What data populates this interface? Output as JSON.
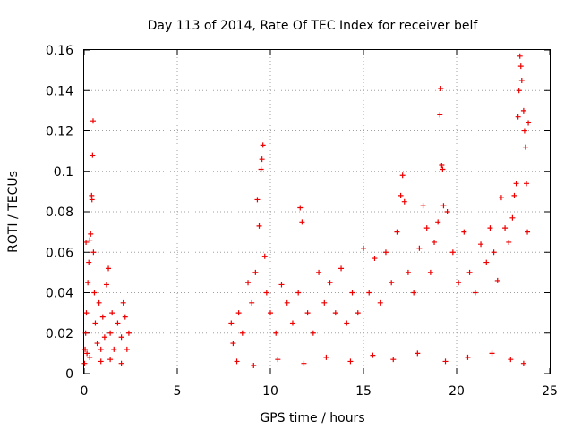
{
  "chart_data": {
    "type": "scatter",
    "title": "Day 113 of 2014, Rate Of TEC Index for receiver belf",
    "xlabel": "GPS time / hours",
    "ylabel": "ROTI / TECUs",
    "xlim": [
      0,
      25
    ],
    "ylim": [
      0,
      0.16
    ],
    "x_ticks": [
      "0",
      "5",
      "10",
      "15",
      "20",
      "25"
    ],
    "y_ticks": [
      "0",
      "0.02",
      "0.04",
      "0.06",
      "0.08",
      "0.1",
      "0.12",
      "0.14",
      "0.16"
    ],
    "grid": true,
    "legend": "none",
    "marker": "+",
    "color": "#ee0000",
    "series": [
      {
        "points": [
          [
            0.02,
            0.005
          ],
          [
            0.05,
            0.012
          ],
          [
            0.08,
            0.02
          ],
          [
            0.1,
            0.065
          ],
          [
            0.12,
            0.03
          ],
          [
            0.15,
            0.01
          ],
          [
            0.2,
            0.045
          ],
          [
            0.25,
            0.055
          ],
          [
            0.3,
            0.066
          ],
          [
            0.35,
            0.069
          ],
          [
            0.4,
            0.088
          ],
          [
            0.42,
            0.086
          ],
          [
            0.45,
            0.108
          ],
          [
            0.48,
            0.125
          ],
          [
            0.5,
            0.06
          ],
          [
            0.55,
            0.04
          ],
          [
            0.6,
            0.025
          ],
          [
            0.7,
            0.015
          ],
          [
            0.8,
            0.035
          ],
          [
            0.9,
            0.012
          ],
          [
            1.0,
            0.028
          ],
          [
            1.1,
            0.018
          ],
          [
            1.2,
            0.044
          ],
          [
            1.3,
            0.052
          ],
          [
            1.4,
            0.02
          ],
          [
            1.5,
            0.03
          ],
          [
            1.6,
            0.012
          ],
          [
            1.8,
            0.025
          ],
          [
            2.0,
            0.018
          ],
          [
            2.1,
            0.035
          ],
          [
            2.2,
            0.028
          ],
          [
            2.3,
            0.012
          ],
          [
            2.4,
            0.02
          ],
          [
            7.9,
            0.025
          ],
          [
            8.0,
            0.015
          ],
          [
            8.3,
            0.03
          ],
          [
            8.5,
            0.02
          ],
          [
            8.8,
            0.045
          ],
          [
            9.0,
            0.035
          ],
          [
            9.2,
            0.05
          ],
          [
            9.3,
            0.086
          ],
          [
            9.4,
            0.073
          ],
          [
            9.5,
            0.101
          ],
          [
            9.55,
            0.106
          ],
          [
            9.6,
            0.113
          ],
          [
            9.7,
            0.058
          ],
          [
            9.8,
            0.04
          ],
          [
            10.0,
            0.03
          ],
          [
            10.3,
            0.02
          ],
          [
            10.6,
            0.044
          ],
          [
            10.9,
            0.035
          ],
          [
            11.2,
            0.025
          ],
          [
            11.5,
            0.04
          ],
          [
            11.6,
            0.082
          ],
          [
            11.7,
            0.075
          ],
          [
            12.0,
            0.03
          ],
          [
            12.3,
            0.02
          ],
          [
            12.6,
            0.05
          ],
          [
            12.9,
            0.035
          ],
          [
            13.2,
            0.045
          ],
          [
            13.5,
            0.03
          ],
          [
            13.8,
            0.052
          ],
          [
            14.1,
            0.025
          ],
          [
            14.4,
            0.04
          ],
          [
            14.7,
            0.03
          ],
          [
            15.0,
            0.062
          ],
          [
            15.3,
            0.04
          ],
          [
            15.6,
            0.057
          ],
          [
            15.9,
            0.035
          ],
          [
            16.2,
            0.06
          ],
          [
            16.5,
            0.045
          ],
          [
            16.8,
            0.07
          ],
          [
            17.0,
            0.088
          ],
          [
            17.1,
            0.098
          ],
          [
            17.2,
            0.085
          ],
          [
            17.4,
            0.05
          ],
          [
            17.7,
            0.04
          ],
          [
            18.0,
            0.062
          ],
          [
            18.2,
            0.083
          ],
          [
            18.4,
            0.072
          ],
          [
            18.6,
            0.05
          ],
          [
            18.8,
            0.065
          ],
          [
            19.0,
            0.075
          ],
          [
            19.1,
            0.128
          ],
          [
            19.15,
            0.141
          ],
          [
            19.2,
            0.103
          ],
          [
            19.25,
            0.101
          ],
          [
            19.3,
            0.083
          ],
          [
            19.5,
            0.08
          ],
          [
            19.8,
            0.06
          ],
          [
            20.1,
            0.045
          ],
          [
            20.4,
            0.07
          ],
          [
            20.7,
            0.05
          ],
          [
            21.0,
            0.04
          ],
          [
            21.3,
            0.064
          ],
          [
            21.6,
            0.055
          ],
          [
            21.8,
            0.072
          ],
          [
            22.0,
            0.06
          ],
          [
            22.2,
            0.046
          ],
          [
            22.4,
            0.087
          ],
          [
            22.6,
            0.072
          ],
          [
            22.8,
            0.065
          ],
          [
            23.0,
            0.077
          ],
          [
            23.1,
            0.088
          ],
          [
            23.2,
            0.094
          ],
          [
            23.3,
            0.127
          ],
          [
            23.35,
            0.14
          ],
          [
            23.4,
            0.157
          ],
          [
            23.45,
            0.152
          ],
          [
            23.5,
            0.145
          ],
          [
            23.6,
            0.13
          ],
          [
            23.65,
            0.12
          ],
          [
            23.7,
            0.112
          ],
          [
            23.75,
            0.094
          ],
          [
            23.8,
            0.07
          ],
          [
            23.85,
            0.124
          ],
          [
            0.3,
            0.008
          ],
          [
            0.9,
            0.006
          ],
          [
            1.4,
            0.007
          ],
          [
            2.0,
            0.005
          ],
          [
            8.2,
            0.006
          ],
          [
            9.1,
            0.004
          ],
          [
            10.4,
            0.007
          ],
          [
            11.8,
            0.005
          ],
          [
            13.0,
            0.008
          ],
          [
            14.3,
            0.006
          ],
          [
            15.5,
            0.009
          ],
          [
            16.6,
            0.007
          ],
          [
            17.9,
            0.01
          ],
          [
            19.4,
            0.006
          ],
          [
            20.6,
            0.008
          ],
          [
            21.9,
            0.01
          ],
          [
            22.9,
            0.007
          ],
          [
            23.6,
            0.005
          ]
        ]
      }
    ]
  }
}
